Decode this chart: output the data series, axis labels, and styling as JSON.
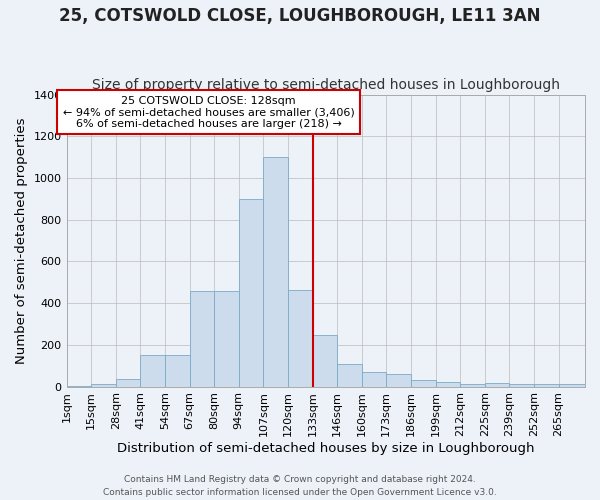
{
  "title": "25, COTSWOLD CLOSE, LOUGHBOROUGH, LE11 3AN",
  "subtitle": "Size of property relative to semi-detached houses in Loughborough",
  "xlabel": "Distribution of semi-detached houses by size in Loughborough",
  "ylabel": "Number of semi-detached properties",
  "bin_labels": [
    "1sqm",
    "15sqm",
    "28sqm",
    "41sqm",
    "54sqm",
    "67sqm",
    "80sqm",
    "94sqm",
    "107sqm",
    "120sqm",
    "133sqm",
    "146sqm",
    "160sqm",
    "173sqm",
    "186sqm",
    "199sqm",
    "212sqm",
    "225sqm",
    "239sqm",
    "252sqm",
    "265sqm"
  ],
  "bar_heights": [
    5,
    10,
    35,
    150,
    150,
    460,
    460,
    900,
    1100,
    465,
    245,
    110,
    70,
    60,
    30,
    20,
    10,
    15,
    10,
    10,
    10
  ],
  "bar_color": "#ccdcec",
  "bar_edgecolor": "#7aaac8",
  "property_label": "25 COTSWOLD CLOSE: 128sqm",
  "pct_smaller": 94,
  "n_smaller": 3406,
  "pct_larger": 6,
  "n_larger": 218,
  "vline_color": "#cc0000",
  "annotation_box_edgecolor": "#cc0000",
  "background_color": "#edf2f8",
  "ylim": [
    0,
    1400
  ],
  "bin_edges": [
    1,
    14,
    27,
    40,
    53,
    66,
    79,
    92,
    105,
    118,
    131,
    144,
    157,
    170,
    183,
    196,
    209,
    222,
    235,
    248,
    261,
    275
  ],
  "vline_x": 131,
  "title_fontsize": 12,
  "subtitle_fontsize": 10,
  "axis_label_fontsize": 9.5,
  "tick_fontsize": 8,
  "footer_text": "Contains HM Land Registry data © Crown copyright and database right 2024.\nContains public sector information licensed under the Open Government Licence v3.0."
}
